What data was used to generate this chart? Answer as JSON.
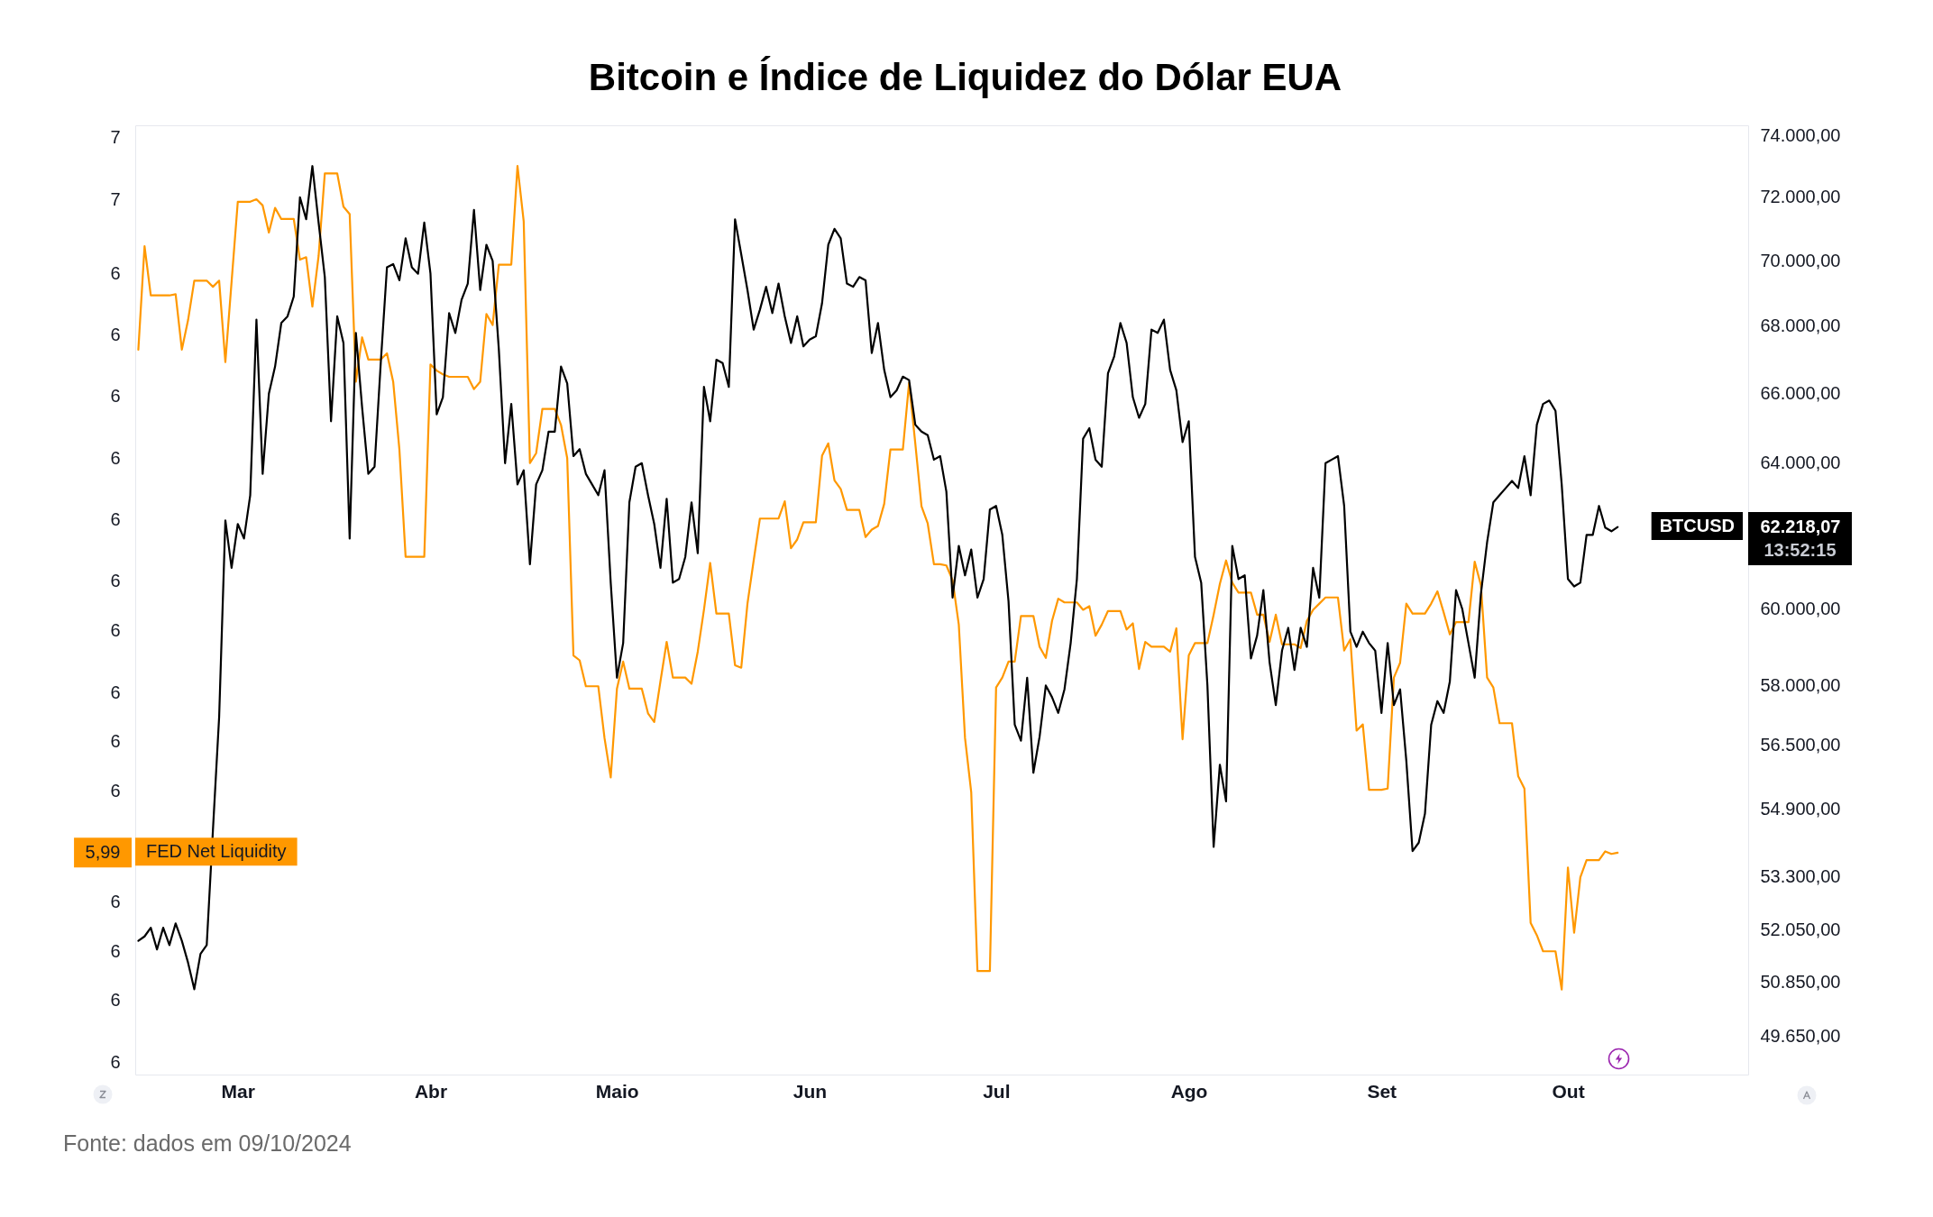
{
  "chart_data": {
    "type": "line",
    "title": "Bitcoin e Índice de Liquidez do Dólar EUA",
    "annotations": [
      "Fonte: dados em 09/10/2024",
      "13:52:15"
    ],
    "x": [
      "2024-02-14",
      "2024-02-15",
      "2024-02-16",
      "2024-02-17",
      "2024-02-18",
      "2024-02-19",
      "2024-02-20",
      "2024-02-21",
      "2024-02-22",
      "2024-02-23",
      "2024-02-24",
      "2024-02-25",
      "2024-02-26",
      "2024-02-27",
      "2024-02-28",
      "2024-02-29",
      "2024-03-01",
      "2024-03-02",
      "2024-03-03",
      "2024-03-04",
      "2024-03-05",
      "2024-03-06",
      "2024-03-07",
      "2024-03-08",
      "2024-03-09",
      "2024-03-10",
      "2024-03-11",
      "2024-03-12",
      "2024-03-13",
      "2024-03-14",
      "2024-03-15",
      "2024-03-16",
      "2024-03-17",
      "2024-03-18",
      "2024-03-19",
      "2024-03-20",
      "2024-03-21",
      "2024-03-22",
      "2024-03-23",
      "2024-03-24",
      "2024-03-25",
      "2024-03-26",
      "2024-03-27",
      "2024-03-28",
      "2024-03-29",
      "2024-03-30",
      "2024-03-31",
      "2024-04-01",
      "2024-04-02",
      "2024-04-03",
      "2024-04-04",
      "2024-04-05",
      "2024-04-06",
      "2024-04-07",
      "2024-04-08",
      "2024-04-09",
      "2024-04-10",
      "2024-04-11",
      "2024-04-12",
      "2024-04-13",
      "2024-04-14",
      "2024-04-15",
      "2024-04-16",
      "2024-04-17",
      "2024-04-18",
      "2024-04-19",
      "2024-04-20",
      "2024-04-21",
      "2024-04-22",
      "2024-04-23",
      "2024-04-24",
      "2024-04-25",
      "2024-04-26",
      "2024-04-27",
      "2024-04-28",
      "2024-04-29",
      "2024-04-30",
      "2024-05-01",
      "2024-05-02",
      "2024-05-03",
      "2024-05-04",
      "2024-05-05",
      "2024-05-06",
      "2024-05-07",
      "2024-05-08",
      "2024-05-09",
      "2024-05-10",
      "2024-05-11",
      "2024-05-12",
      "2024-05-13",
      "2024-05-14",
      "2024-05-15",
      "2024-05-16",
      "2024-05-17",
      "2024-05-18",
      "2024-05-19",
      "2024-05-20",
      "2024-05-21",
      "2024-05-22",
      "2024-05-23",
      "2024-05-24",
      "2024-05-25",
      "2024-05-26",
      "2024-05-27",
      "2024-05-28",
      "2024-05-29",
      "2024-05-30",
      "2024-05-31",
      "2024-06-01",
      "2024-06-02",
      "2024-06-03",
      "2024-06-04",
      "2024-06-05",
      "2024-06-06",
      "2024-06-07",
      "2024-06-08",
      "2024-06-09",
      "2024-06-10",
      "2024-06-11",
      "2024-06-12",
      "2024-06-13",
      "2024-06-14",
      "2024-06-15",
      "2024-06-16",
      "2024-06-17",
      "2024-06-18",
      "2024-06-19",
      "2024-06-20",
      "2024-06-21",
      "2024-06-22",
      "2024-06-23",
      "2024-06-24",
      "2024-06-25",
      "2024-06-26",
      "2024-06-27",
      "2024-06-28",
      "2024-06-29",
      "2024-06-30",
      "2024-07-01",
      "2024-07-02",
      "2024-07-03",
      "2024-07-04",
      "2024-07-05",
      "2024-07-06",
      "2024-07-07",
      "2024-07-08",
      "2024-07-09",
      "2024-07-10",
      "2024-07-11",
      "2024-07-12",
      "2024-07-13",
      "2024-07-14",
      "2024-07-15",
      "2024-07-16",
      "2024-07-17",
      "2024-07-18",
      "2024-07-19",
      "2024-07-20",
      "2024-07-21",
      "2024-07-22",
      "2024-07-23",
      "2024-07-24",
      "2024-07-25",
      "2024-07-26",
      "2024-07-27",
      "2024-07-28",
      "2024-07-29",
      "2024-07-30",
      "2024-07-31",
      "2024-08-01",
      "2024-08-02",
      "2024-08-03",
      "2024-08-04",
      "2024-08-05",
      "2024-08-06",
      "2024-08-07",
      "2024-08-08",
      "2024-08-09",
      "2024-08-10",
      "2024-08-11",
      "2024-08-12",
      "2024-08-13",
      "2024-08-14",
      "2024-08-15",
      "2024-08-16",
      "2024-08-17",
      "2024-08-18",
      "2024-08-19",
      "2024-08-20",
      "2024-08-21",
      "2024-08-22",
      "2024-08-23",
      "2024-08-24",
      "2024-08-25",
      "2024-08-26",
      "2024-08-27",
      "2024-08-28",
      "2024-08-29",
      "2024-08-30",
      "2024-08-31",
      "2024-09-01",
      "2024-09-02",
      "2024-09-03",
      "2024-09-04",
      "2024-09-05",
      "2024-09-06",
      "2024-09-07",
      "2024-09-08",
      "2024-09-09",
      "2024-09-10",
      "2024-09-11",
      "2024-09-12",
      "2024-09-13",
      "2024-09-14",
      "2024-09-15",
      "2024-09-16",
      "2024-09-17",
      "2024-09-18",
      "2024-09-19",
      "2024-09-20",
      "2024-09-21",
      "2024-09-22",
      "2024-09-23",
      "2024-09-24",
      "2024-09-25",
      "2024-09-26",
      "2024-09-27",
      "2024-09-28",
      "2024-09-29",
      "2024-09-30",
      "2024-10-01",
      "2024-10-02",
      "2024-10-03",
      "2024-10-04",
      "2024-10-05",
      "2024-10-06",
      "2024-10-07",
      "2024-10-08",
      "2024-10-09"
    ],
    "xlim": [
      "2024-02-13T12:00",
      "2024-10-30"
    ],
    "xticks": [
      {
        "value": "2024-03-01",
        "label": "Mar"
      },
      {
        "value": "2024-04-01",
        "label": "Abr"
      },
      {
        "value": "2024-05-01",
        "label": "Maio"
      },
      {
        "value": "2024-06-01",
        "label": "Jun"
      },
      {
        "value": "2024-07-01",
        "label": "Jul"
      },
      {
        "value": "2024-08-01",
        "label": "Ago"
      },
      {
        "value": "2024-09-01",
        "label": "Set"
      },
      {
        "value": "2024-10-01",
        "label": "Out"
      }
    ],
    "ylim": [
      5.81,
      6.58
    ],
    "yticks": [
      {
        "value": 6.57,
        "label": "7"
      },
      {
        "value": 6.52,
        "label": "7"
      },
      {
        "value": 6.46,
        "label": "6"
      },
      {
        "value": 6.41,
        "label": "6"
      },
      {
        "value": 6.36,
        "label": "6"
      },
      {
        "value": 6.31,
        "label": "6"
      },
      {
        "value": 6.26,
        "label": "6"
      },
      {
        "value": 6.21,
        "label": "6"
      },
      {
        "value": 6.17,
        "label": "6"
      },
      {
        "value": 6.12,
        "label": "6"
      },
      {
        "value": 6.08,
        "label": "6"
      },
      {
        "value": 6.04,
        "label": "6"
      },
      {
        "value": 5.99,
        "label": "5,99"
      },
      {
        "value": 5.95,
        "label": "6"
      },
      {
        "value": 5.91,
        "label": "6"
      },
      {
        "value": 5.87,
        "label": "6"
      },
      {
        "value": 5.82,
        "label": "6"
      }
    ],
    "y2lim": [
      48820,
      74330
    ],
    "y2ticks": [
      {
        "value": 74000,
        "label": "74.000,00"
      },
      {
        "value": 72000,
        "label": "72.000,00"
      },
      {
        "value": 70000,
        "label": "70.000,00"
      },
      {
        "value": 68000,
        "label": "68.000,00"
      },
      {
        "value": 66000,
        "label": "66.000,00"
      },
      {
        "value": 64000,
        "label": "64.000,00"
      },
      {
        "value": 62218.07,
        "label": "62.218,07"
      },
      {
        "value": 60000,
        "label": "60.000,00"
      },
      {
        "value": 58000,
        "label": "58.000,00"
      },
      {
        "value": 56500,
        "label": "56.500,00"
      },
      {
        "value": 54900,
        "label": "54.900,00"
      },
      {
        "value": 53300,
        "label": "53.300,00"
      },
      {
        "value": 52050,
        "label": "52.050,00"
      },
      {
        "value": 50850,
        "label": "50.850,00"
      },
      {
        "value": 49650,
        "label": "49.650,00"
      }
    ],
    "log": "y2",
    "series": [
      {
        "name": "FED Net Liquidity",
        "color": "#ff9800",
        "values": [
          6.398,
          6.482,
          6.442,
          6.442,
          6.442,
          6.442,
          6.443,
          6.398,
          6.422,
          6.454,
          6.454,
          6.454,
          6.449,
          6.454,
          6.388,
          6.453,
          6.518,
          6.518,
          6.518,
          6.52,
          6.515,
          6.493,
          6.513,
          6.504,
          6.504,
          6.504,
          6.471,
          6.473,
          6.433,
          6.474,
          6.541,
          6.541,
          6.541,
          6.514,
          6.508,
          6.372,
          6.408,
          6.39,
          6.39,
          6.39,
          6.395,
          6.372,
          6.317,
          6.23,
          6.23,
          6.23,
          6.23,
          6.386,
          6.381,
          6.378,
          6.376,
          6.376,
          6.376,
          6.376,
          6.366,
          6.372,
          6.427,
          6.418,
          6.467,
          6.467,
          6.467,
          6.547,
          6.502,
          6.306,
          6.314,
          6.35,
          6.35,
          6.35,
          6.337,
          6.31,
          6.15,
          6.146,
          6.125,
          6.125,
          6.125,
          6.083,
          6.051,
          6.123,
          6.145,
          6.123,
          6.123,
          6.123,
          6.103,
          6.096,
          6.129,
          6.161,
          6.132,
          6.132,
          6.132,
          6.127,
          6.153,
          6.187,
          6.225,
          6.184,
          6.184,
          6.184,
          6.142,
          6.14,
          6.192,
          6.227,
          6.261,
          6.261,
          6.261,
          6.261,
          6.275,
          6.237,
          6.244,
          6.258,
          6.258,
          6.258,
          6.312,
          6.322,
          6.292,
          6.285,
          6.268,
          6.268,
          6.268,
          6.246,
          6.252,
          6.255,
          6.273,
          6.317,
          6.317,
          6.317,
          6.371,
          6.322,
          6.271,
          6.257,
          6.224,
          6.224,
          6.223,
          6.211,
          6.175,
          6.083,
          6.039,
          5.894,
          5.894,
          5.894,
          6.124,
          6.132,
          6.145,
          6.145,
          6.182,
          6.182,
          6.182,
          6.157,
          6.148,
          6.178,
          6.196,
          6.193,
          6.193,
          6.193,
          6.187,
          6.19,
          6.166,
          6.175,
          6.186,
          6.186,
          6.186,
          6.171,
          6.176,
          6.139,
          6.161,
          6.157,
          6.157,
          6.157,
          6.153,
          6.172,
          6.082,
          6.15,
          6.16,
          6.16,
          6.16,
          6.183,
          6.208,
          6.227,
          6.209,
          6.201,
          6.201,
          6.201,
          6.183,
          6.183,
          6.161,
          6.183,
          6.159,
          6.159,
          6.159,
          6.156,
          6.178,
          6.187,
          6.192,
          6.197,
          6.197,
          6.197,
          6.154,
          6.163,
          6.089,
          6.094,
          6.041,
          6.041,
          6.041,
          6.042,
          6.132,
          6.144,
          6.192,
          6.184,
          6.184,
          6.184,
          6.192,
          6.202,
          6.185,
          6.167,
          6.177,
          6.177,
          6.177,
          6.226,
          6.207,
          6.132,
          6.124,
          6.095,
          6.095,
          6.095,
          6.052,
          6.042,
          5.933,
          5.923,
          5.91,
          5.91,
          5.91,
          5.879,
          5.978,
          5.925,
          5.97,
          5.984,
          5.984,
          5.984,
          5.991,
          5.989,
          5.99
        ]
      },
      {
        "name": "BTCUSD",
        "color": "#000000",
        "axis": "y2",
        "values": [
          51800,
          51900,
          52100,
          51600,
          52100,
          51700,
          52200,
          51800,
          51300,
          50700,
          51500,
          51700,
          54400,
          57200,
          62400,
          61100,
          62300,
          61900,
          63100,
          68200,
          63700,
          66000,
          66800,
          68100,
          68300,
          68900,
          72000,
          71300,
          73000,
          71200,
          69500,
          65200,
          68300,
          67500,
          61900,
          67800,
          65600,
          63700,
          63900,
          66900,
          69800,
          69900,
          69400,
          70700,
          69800,
          69600,
          71200,
          69600,
          65400,
          65900,
          68400,
          67800,
          68800,
          69300,
          71600,
          69100,
          70500,
          70000,
          67300,
          64000,
          65700,
          63400,
          63800,
          61200,
          63400,
          63800,
          64900,
          64900,
          66800,
          66300,
          64200,
          64400,
          63700,
          63400,
          63100,
          63800,
          60700,
          58200,
          59100,
          62900,
          63900,
          64000,
          63100,
          62300,
          61100,
          63000,
          60700,
          60800,
          61400,
          62900,
          61500,
          66200,
          65200,
          67000,
          66900,
          66200,
          71300,
          70200,
          69100,
          67900,
          68500,
          69200,
          68400,
          69300,
          68300,
          67500,
          68300,
          67400,
          67600,
          67700,
          68700,
          70500,
          71000,
          70700,
          69300,
          69200,
          69500,
          69400,
          67200,
          68100,
          66700,
          65900,
          66100,
          66500,
          66400,
          65100,
          64900,
          64800,
          64100,
          64200,
          63200,
          60300,
          61700,
          60900,
          61600,
          60300,
          60800,
          62700,
          62800,
          62000,
          60200,
          57000,
          56600,
          58200,
          55800,
          56700,
          58000,
          57700,
          57300,
          57900,
          59100,
          60800,
          64700,
          65000,
          64100,
          63900,
          66600,
          67100,
          68100,
          67500,
          65900,
          65300,
          65700,
          67900,
          67800,
          68200,
          66700,
          66100,
          64600,
          65200,
          61400,
          60700,
          58000,
          54000,
          56000,
          55100,
          61700,
          60800,
          60900,
          58700,
          59300,
          60500,
          58600,
          57500,
          58900,
          59500,
          58400,
          59500,
          59000,
          61100,
          60300,
          64000,
          64100,
          64200,
          62800,
          59400,
          59000,
          59400,
          59100,
          58900,
          57300,
          59100,
          57500,
          57900,
          56100,
          53900,
          54100,
          54800,
          57000,
          57600,
          57300,
          58100,
          60500,
          60000,
          59100,
          58200,
          60400,
          61800,
          62900,
          63100,
          63300,
          63500,
          63300,
          64200,
          63100,
          65100,
          65700,
          65800,
          65500,
          63400,
          60800,
          60600,
          60700,
          62000,
          62000,
          62800,
          62200,
          62100,
          62218.07
        ]
      }
    ]
  }
}
